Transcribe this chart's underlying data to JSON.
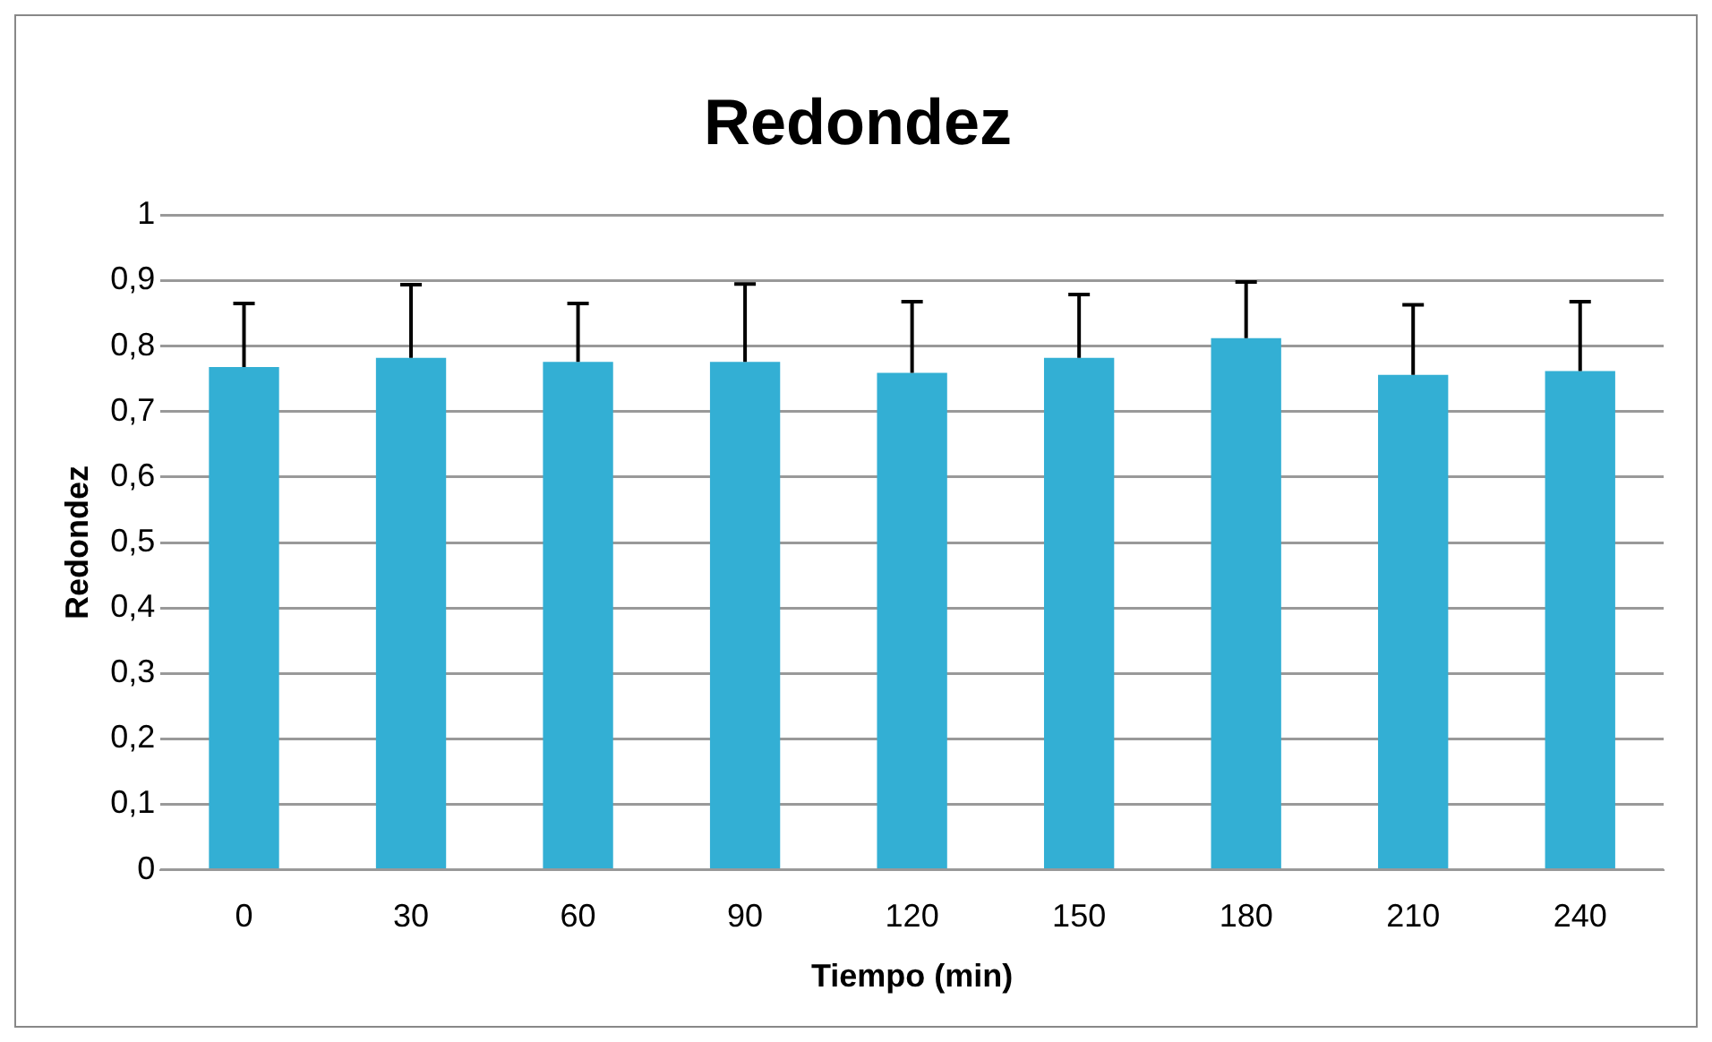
{
  "chart_data": {
    "type": "bar",
    "title": "Redondez",
    "xlabel": "Tiempo (min)",
    "ylabel": "Redondez",
    "categories": [
      "0",
      "30",
      "60",
      "90",
      "120",
      "150",
      "180",
      "210",
      "240"
    ],
    "values": [
      0.768,
      0.782,
      0.776,
      0.776,
      0.759,
      0.782,
      0.812,
      0.756,
      0.762
    ],
    "errors": [
      [
        0.768,
        0.865
      ],
      [
        0.782,
        0.894
      ],
      [
        0.776,
        0.865
      ],
      [
        0.776,
        0.895
      ],
      [
        0.759,
        0.868
      ],
      [
        0.782,
        0.879
      ],
      [
        0.812,
        0.898
      ],
      [
        0.756,
        0.863
      ],
      [
        0.762,
        0.868
      ]
    ],
    "color": "#33afd4",
    "ylim": [
      0,
      1
    ],
    "yticks": [
      0,
      {
        "value": 0.1,
        "label": "0,1"
      },
      {
        "value": 0.2,
        "label": "0,2"
      },
      {
        "value": 0.3,
        "label": "0,3"
      },
      {
        "value": 0.4,
        "label": "0,4"
      },
      {
        "value": 0.5,
        "label": "0,5"
      },
      {
        "value": 0.6,
        "label": "0,6"
      },
      {
        "value": 0.7,
        "label": "0,7"
      },
      {
        "value": 0.8,
        "label": "0,8"
      },
      {
        "value": 0.9,
        "label": "0,9"
      },
      1
    ],
    "grid": "y",
    "legend": false
  }
}
